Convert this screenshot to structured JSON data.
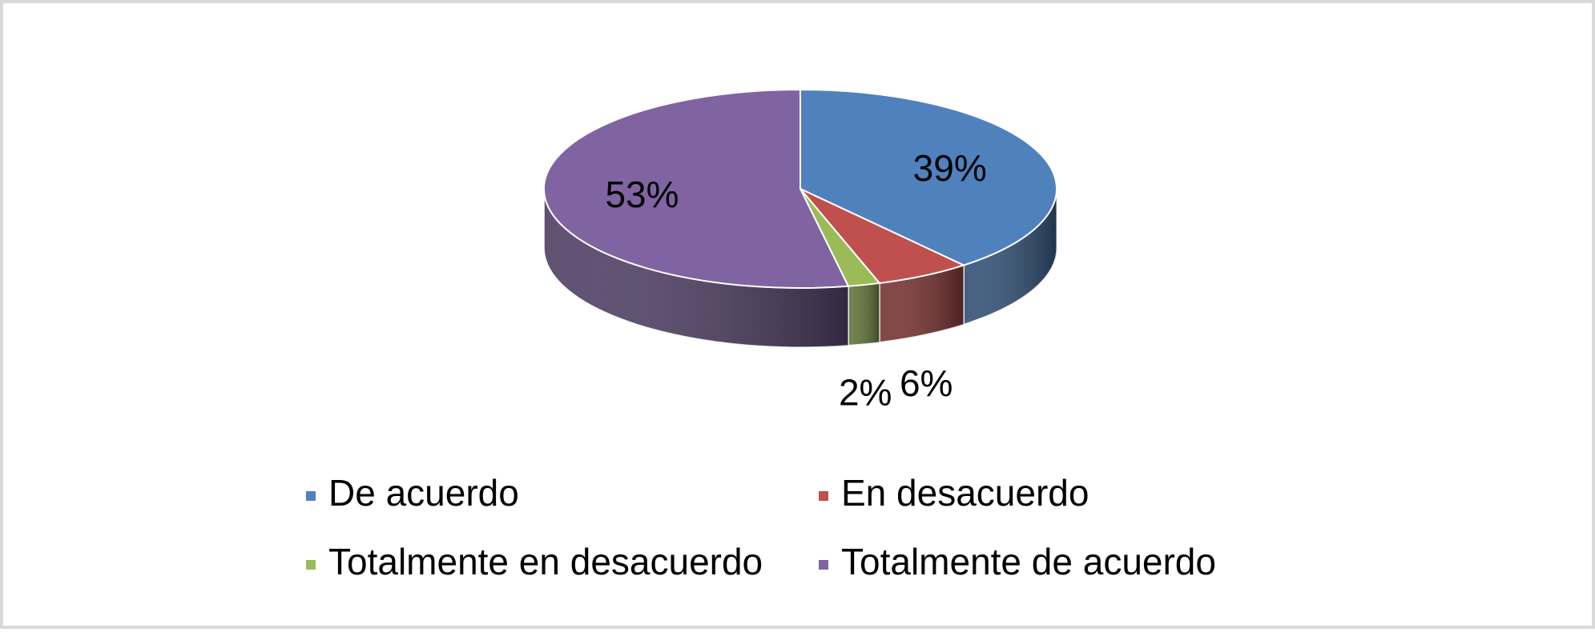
{
  "chart_data": {
    "type": "pie",
    "style": "3d",
    "title": "",
    "series": [
      {
        "name": "De acuerdo",
        "value": 39,
        "label": "39%",
        "color": "#4F81BD"
      },
      {
        "name": "En desacuerdo",
        "value": 6,
        "label": "6%",
        "color": "#C0504D"
      },
      {
        "name": "Totalmente en desacuerdo",
        "value": 2,
        "label": "2%",
        "color": "#9BBB59"
      },
      {
        "name": "Totalmente de acuerdo",
        "value": 53,
        "label": "53%",
        "color": "#8064A2"
      }
    ],
    "legend_position": "bottom"
  }
}
